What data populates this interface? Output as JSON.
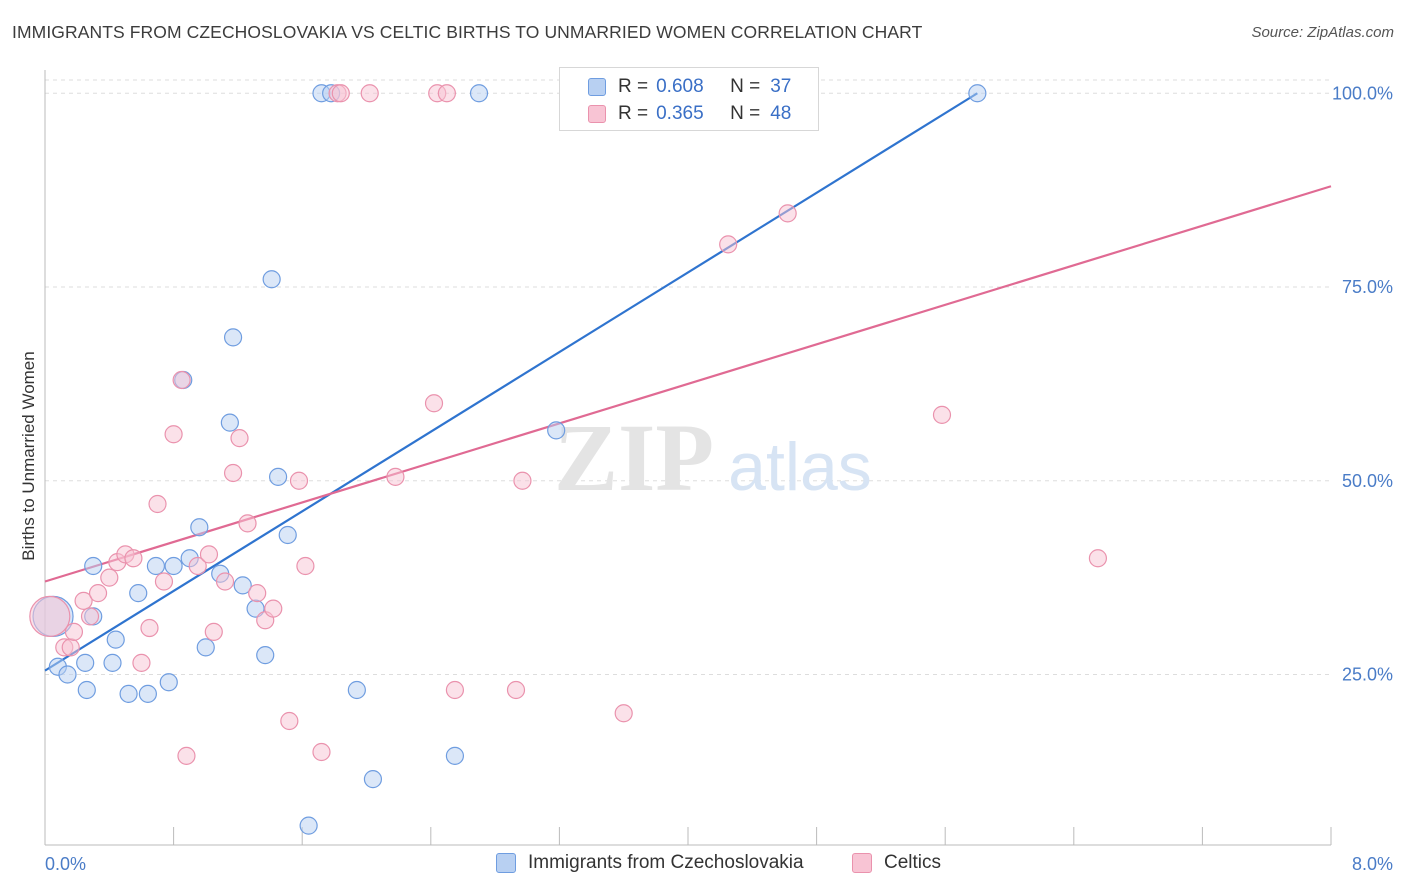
{
  "title": "IMMIGRANTS FROM CZECHOSLOVAKIA VS CELTIC BIRTHS TO UNMARRIED WOMEN CORRELATION CHART",
  "source": "Source: ZipAtlas.com",
  "watermark": {
    "zip": "ZIP",
    "atlas": "atlas"
  },
  "legend": {
    "rows": [
      {
        "r_label": "R =",
        "r_value": "0.608",
        "n_label": "N =",
        "n_value": "37"
      },
      {
        "r_label": "R =",
        "r_value": "0.365",
        "n_label": "N =",
        "n_value": "48"
      }
    ]
  },
  "bottom_legend": {
    "series1": "Immigrants from Czechoslovakia",
    "series2": "Celtics"
  },
  "colors": {
    "blue_fill": "#b8d0f2",
    "blue_stroke": "#6f9de0",
    "blue_line": "#2f74cf",
    "pink_fill": "#f8c4d4",
    "pink_stroke": "#ea92ad",
    "pink_line": "#e06a93",
    "tick_text": "#4a7cc7",
    "grid": "#dddddd"
  },
  "chart_data": {
    "type": "scatter",
    "title": "IMMIGRANTS FROM CZECHOSLOVAKIA VS CELTIC BIRTHS TO UNMARRIED WOMEN CORRELATION CHART",
    "xlabel": "",
    "ylabel": "Births to Unmarried Women",
    "xlim": [
      0,
      8
    ],
    "ylim": [
      3,
      103
    ],
    "x_tick_labels": [
      "0.0%",
      "8.0%"
    ],
    "y_ticks": [
      25,
      50,
      75,
      100
    ],
    "y_tick_labels": [
      "25.0%",
      "50.0%",
      "75.0%",
      "100.0%"
    ],
    "grid": true,
    "legend_position": "top-center",
    "series": [
      {
        "name": "Immigrants from Czechoslovakia",
        "color": "#b8d0f2",
        "r": 0.608,
        "n": 37,
        "trend": {
          "x": [
            0,
            5.8
          ],
          "y": [
            25.5,
            100
          ]
        },
        "points": [
          {
            "x": 0.05,
            "y": 32.5,
            "big": true
          },
          {
            "x": 0.08,
            "y": 26.0
          },
          {
            "x": 0.14,
            "y": 25.0
          },
          {
            "x": 0.25,
            "y": 26.5
          },
          {
            "x": 0.26,
            "y": 23.0
          },
          {
            "x": 0.3,
            "y": 32.5
          },
          {
            "x": 0.3,
            "y": 39.0
          },
          {
            "x": 0.42,
            "y": 26.5
          },
          {
            "x": 0.44,
            "y": 29.5
          },
          {
            "x": 0.52,
            "y": 22.5
          },
          {
            "x": 0.58,
            "y": 35.5
          },
          {
            "x": 0.64,
            "y": 22.5
          },
          {
            "x": 0.69,
            "y": 39.0
          },
          {
            "x": 0.77,
            "y": 24.0
          },
          {
            "x": 0.8,
            "y": 39.0
          },
          {
            "x": 0.86,
            "y": 63.0
          },
          {
            "x": 0.9,
            "y": 40.0
          },
          {
            "x": 0.96,
            "y": 44.0
          },
          {
            "x": 1.0,
            "y": 28.5
          },
          {
            "x": 1.09,
            "y": 38.0
          },
          {
            "x": 1.15,
            "y": 57.5
          },
          {
            "x": 1.17,
            "y": 68.5
          },
          {
            "x": 1.23,
            "y": 36.5
          },
          {
            "x": 1.31,
            "y": 33.5
          },
          {
            "x": 1.37,
            "y": 27.5
          },
          {
            "x": 1.41,
            "y": 76.0
          },
          {
            "x": 1.45,
            "y": 50.5
          },
          {
            "x": 1.51,
            "y": 43.0
          },
          {
            "x": 1.64,
            "y": 5.5
          },
          {
            "x": 1.72,
            "y": 100.0
          },
          {
            "x": 1.78,
            "y": 100.0
          },
          {
            "x": 1.94,
            "y": 23.0
          },
          {
            "x": 2.04,
            "y": 11.5
          },
          {
            "x": 2.55,
            "y": 14.5
          },
          {
            "x": 2.7,
            "y": 100.0
          },
          {
            "x": 3.18,
            "y": 56.5
          },
          {
            "x": 5.8,
            "y": 100.0
          }
        ]
      },
      {
        "name": "Celtics",
        "color": "#f8c4d4",
        "r": 0.365,
        "n": 48,
        "trend": {
          "x": [
            0,
            8
          ],
          "y": [
            37,
            88
          ]
        },
        "points": [
          {
            "x": 0.03,
            "y": 32.5,
            "big": true
          },
          {
            "x": 0.12,
            "y": 28.5
          },
          {
            "x": 0.16,
            "y": 28.5
          },
          {
            "x": 0.18,
            "y": 30.5
          },
          {
            "x": 0.24,
            "y": 34.5
          },
          {
            "x": 0.28,
            "y": 32.5
          },
          {
            "x": 0.33,
            "y": 35.5
          },
          {
            "x": 0.4,
            "y": 37.5
          },
          {
            "x": 0.45,
            "y": 39.5
          },
          {
            "x": 0.5,
            "y": 40.5
          },
          {
            "x": 0.55,
            "y": 40.0
          },
          {
            "x": 0.6,
            "y": 26.5
          },
          {
            "x": 0.65,
            "y": 31.0
          },
          {
            "x": 0.7,
            "y": 47.0
          },
          {
            "x": 0.74,
            "y": 37.0
          },
          {
            "x": 0.8,
            "y": 56.0
          },
          {
            "x": 0.85,
            "y": 63.0
          },
          {
            "x": 0.88,
            "y": 14.5
          },
          {
            "x": 0.95,
            "y": 39.0
          },
          {
            "x": 1.02,
            "y": 40.5
          },
          {
            "x": 1.05,
            "y": 30.5
          },
          {
            "x": 1.12,
            "y": 37.0
          },
          {
            "x": 1.17,
            "y": 51.0
          },
          {
            "x": 1.21,
            "y": 55.5
          },
          {
            "x": 1.26,
            "y": 44.5
          },
          {
            "x": 1.32,
            "y": 35.5
          },
          {
            "x": 1.37,
            "y": 32.0
          },
          {
            "x": 1.42,
            "y": 33.5
          },
          {
            "x": 1.52,
            "y": 19.0
          },
          {
            "x": 1.58,
            "y": 50.0
          },
          {
            "x": 1.62,
            "y": 39.0
          },
          {
            "x": 1.72,
            "y": 15.0
          },
          {
            "x": 1.82,
            "y": 100.0
          },
          {
            "x": 1.84,
            "y": 100.0
          },
          {
            "x": 2.02,
            "y": 100.0
          },
          {
            "x": 2.18,
            "y": 50.5
          },
          {
            "x": 2.42,
            "y": 60.0
          },
          {
            "x": 2.44,
            "y": 100.0
          },
          {
            "x": 2.5,
            "y": 100.0
          },
          {
            "x": 2.55,
            "y": 23.0
          },
          {
            "x": 2.93,
            "y": 23.0
          },
          {
            "x": 2.97,
            "y": 50.0
          },
          {
            "x": 3.3,
            "y": 100.0
          },
          {
            "x": 3.6,
            "y": 20.0
          },
          {
            "x": 4.25,
            "y": 80.5
          },
          {
            "x": 4.62,
            "y": 84.5
          },
          {
            "x": 5.58,
            "y": 58.5
          },
          {
            "x": 6.55,
            "y": 40.0
          }
        ]
      }
    ]
  }
}
